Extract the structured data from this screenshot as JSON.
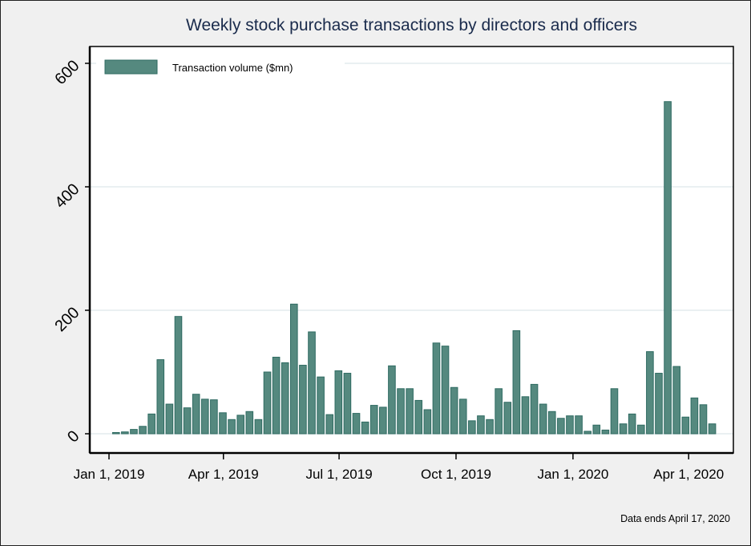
{
  "chart_data": {
    "type": "bar",
    "title": "Weekly stock purchase transactions by directors and officers",
    "xlabel": "",
    "ylabel": "",
    "ylim": [
      0,
      600
    ],
    "yticks": [
      0,
      200,
      400,
      600
    ],
    "xticks": [
      {
        "date": "2019-01-01",
        "label": "Jan 1, 2019"
      },
      {
        "date": "2019-04-01",
        "label": "Apr 1, 2019"
      },
      {
        "date": "2019-07-01",
        "label": "Jul 1, 2019"
      },
      {
        "date": "2019-10-01",
        "label": "Oct 1, 2019"
      },
      {
        "date": "2020-01-01",
        "label": "Jan 1, 2020"
      },
      {
        "date": "2020-04-01",
        "label": "Apr 1, 2020"
      }
    ],
    "grid": "horizontal",
    "legend_position": "top-left",
    "series": [
      {
        "name": "Transaction volume ($mn)",
        "color": "#55897f",
        "x": [
          "2019-01-04",
          "2019-01-11",
          "2019-01-18",
          "2019-01-25",
          "2019-02-01",
          "2019-02-08",
          "2019-02-15",
          "2019-02-22",
          "2019-03-01",
          "2019-03-08",
          "2019-03-15",
          "2019-03-22",
          "2019-03-29",
          "2019-04-05",
          "2019-04-12",
          "2019-04-19",
          "2019-04-26",
          "2019-05-03",
          "2019-05-10",
          "2019-05-17",
          "2019-05-24",
          "2019-05-31",
          "2019-06-07",
          "2019-06-14",
          "2019-06-21",
          "2019-06-28",
          "2019-07-05",
          "2019-07-12",
          "2019-07-19",
          "2019-07-26",
          "2019-08-02",
          "2019-08-09",
          "2019-08-16",
          "2019-08-23",
          "2019-08-30",
          "2019-09-06",
          "2019-09-13",
          "2019-09-20",
          "2019-09-27",
          "2019-10-04",
          "2019-10-11",
          "2019-10-18",
          "2019-10-25",
          "2019-11-01",
          "2019-11-08",
          "2019-11-15",
          "2019-11-22",
          "2019-11-29",
          "2019-12-06",
          "2019-12-13",
          "2019-12-20",
          "2019-12-27",
          "2020-01-03",
          "2020-01-10",
          "2020-01-17",
          "2020-01-24",
          "2020-01-31",
          "2020-02-07",
          "2020-02-14",
          "2020-02-21",
          "2020-02-28",
          "2020-03-06",
          "2020-03-13",
          "2020-03-20",
          "2020-03-27",
          "2020-04-03",
          "2020-04-10",
          "2020-04-17"
        ],
        "values": [
          2,
          3,
          7,
          12,
          32,
          120,
          48,
          190,
          42,
          64,
          56,
          55,
          34,
          23,
          30,
          36,
          23,
          100,
          124,
          115,
          210,
          111,
          165,
          92,
          31,
          102,
          98,
          33,
          19,
          46,
          43,
          110,
          73,
          73,
          54,
          39,
          147,
          142,
          75,
          56,
          21,
          29,
          23,
          73,
          51,
          167,
          60,
          80,
          48,
          36,
          25,
          29,
          29,
          4,
          14,
          6,
          73,
          16,
          32,
          14,
          133,
          98,
          538,
          109,
          27,
          58,
          47,
          16
        ]
      }
    ],
    "note": "Data ends April 17, 2020"
  }
}
